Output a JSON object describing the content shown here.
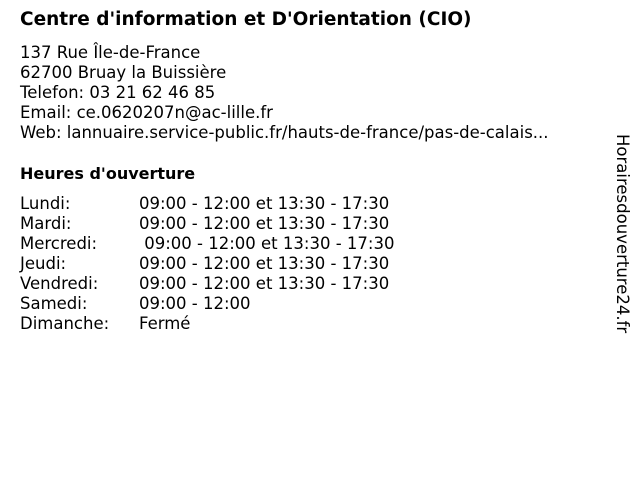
{
  "title": "Centre d'information et D'Orientation (CIO)",
  "address": {
    "street": "137 Rue Île-de-France",
    "city": "62700 Bruay la Buissière",
    "phone": "Telefon: 03 21 62 46 85",
    "email": "Email: ce.0620207n@ac-lille.fr",
    "web": "Web: lannuaire.service-public.fr/hauts-de-france/pas-de-calais..."
  },
  "hours": {
    "heading": "Heures d'ouverture",
    "rows": [
      {
        "day": "Lundi:",
        "time": "09:00 - 12:00 et 13:30 - 17:30"
      },
      {
        "day": "Mardi:",
        "time": "09:00 - 12:00 et 13:30 - 17:30"
      },
      {
        "day": "Mercredi:",
        "time": " 09:00 - 12:00 et 13:30 - 17:30"
      },
      {
        "day": "Jeudi:",
        "time": "09:00 - 12:00 et 13:30 - 17:30"
      },
      {
        "day": "Vendredi:",
        "time": "09:00 - 12:00 et 13:30 - 17:30"
      },
      {
        "day": "Samedi:",
        "time": "09:00 - 12:00"
      },
      {
        "day": "Dimanche:",
        "time": "Fermé"
      }
    ]
  },
  "watermark": "Horairesdouverture24.fr"
}
